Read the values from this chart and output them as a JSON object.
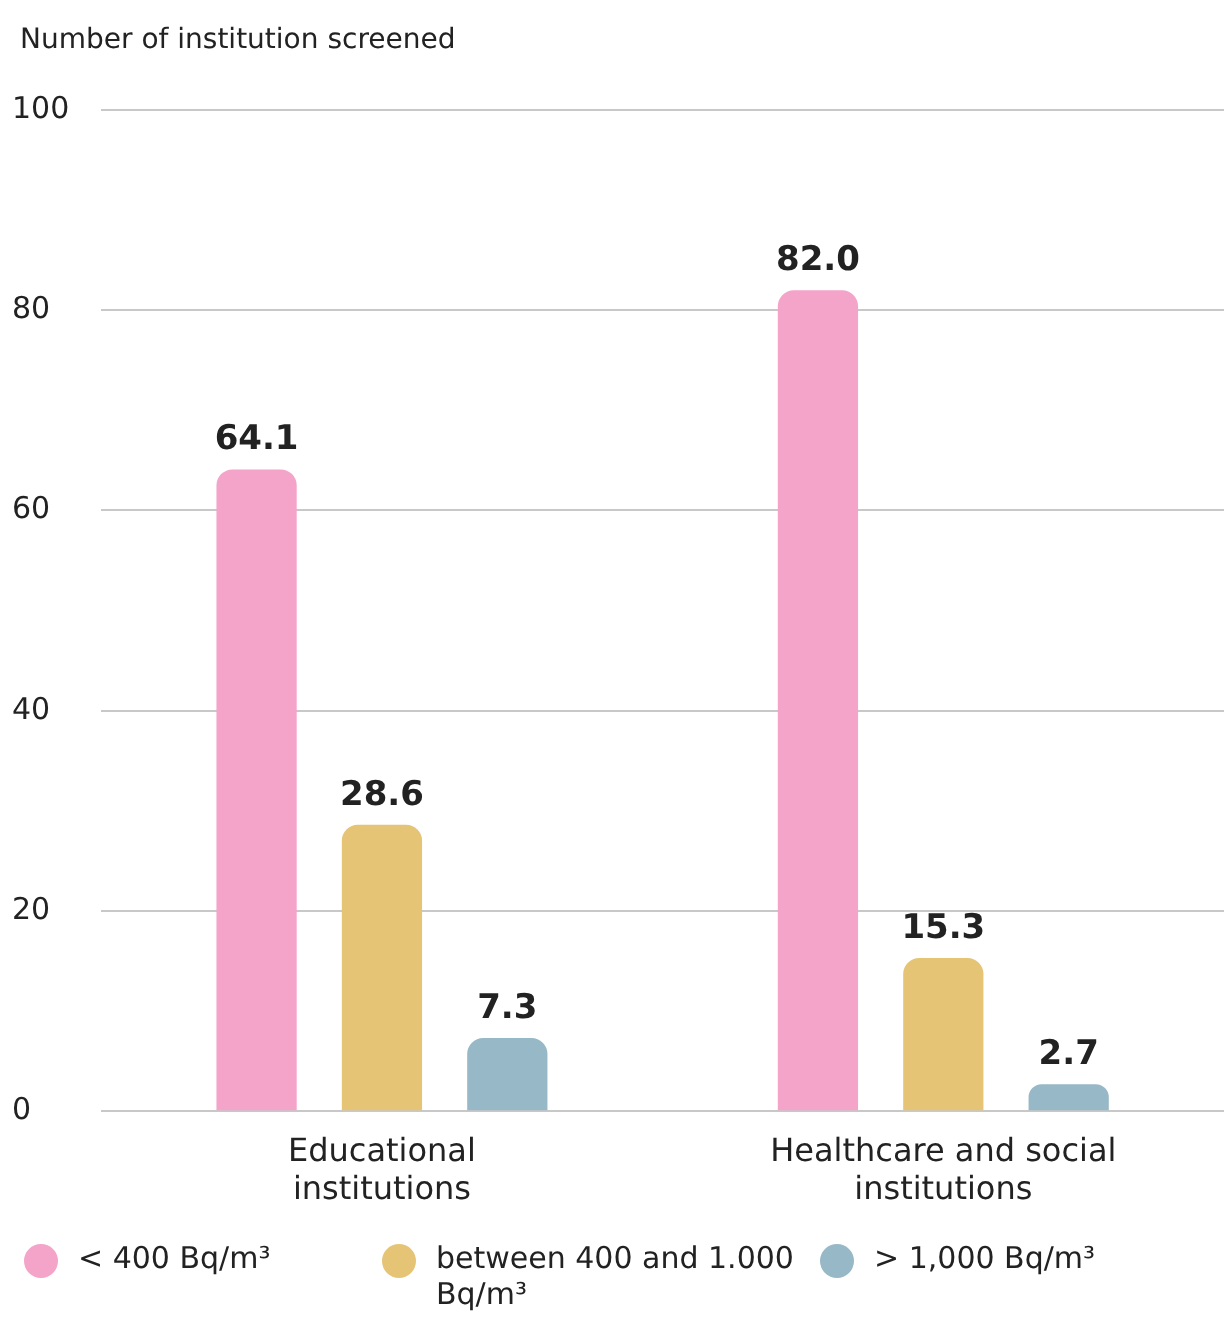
{
  "chart_data": {
    "type": "bar",
    "ylabel": "Number of institution screened",
    "categories": [
      "Educational institutions",
      "Healthcare and social institutions"
    ],
    "series": [
      {
        "name": "< 400 Bq/m³",
        "color": "#f4a3c9",
        "values": [
          64.1,
          82.0
        ],
        "value_labels": [
          "64.1",
          "82.0"
        ]
      },
      {
        "name": "between 400 and 1.000 Bq/m³",
        "color": "#e5c476",
        "values": [
          28.6,
          15.3
        ],
        "value_labels": [
          "28.6",
          "15.3"
        ]
      },
      {
        "name": "> 1,000 Bq/m³",
        "color": "#97b8c6",
        "values": [
          7.3,
          2.7
        ],
        "value_labels": [
          "7.3",
          "2.7"
        ]
      }
    ],
    "ylim": [
      0,
      100
    ],
    "yticks": [
      0,
      20,
      40,
      60,
      80,
      100
    ],
    "grid": "y",
    "legend": "bottom"
  }
}
